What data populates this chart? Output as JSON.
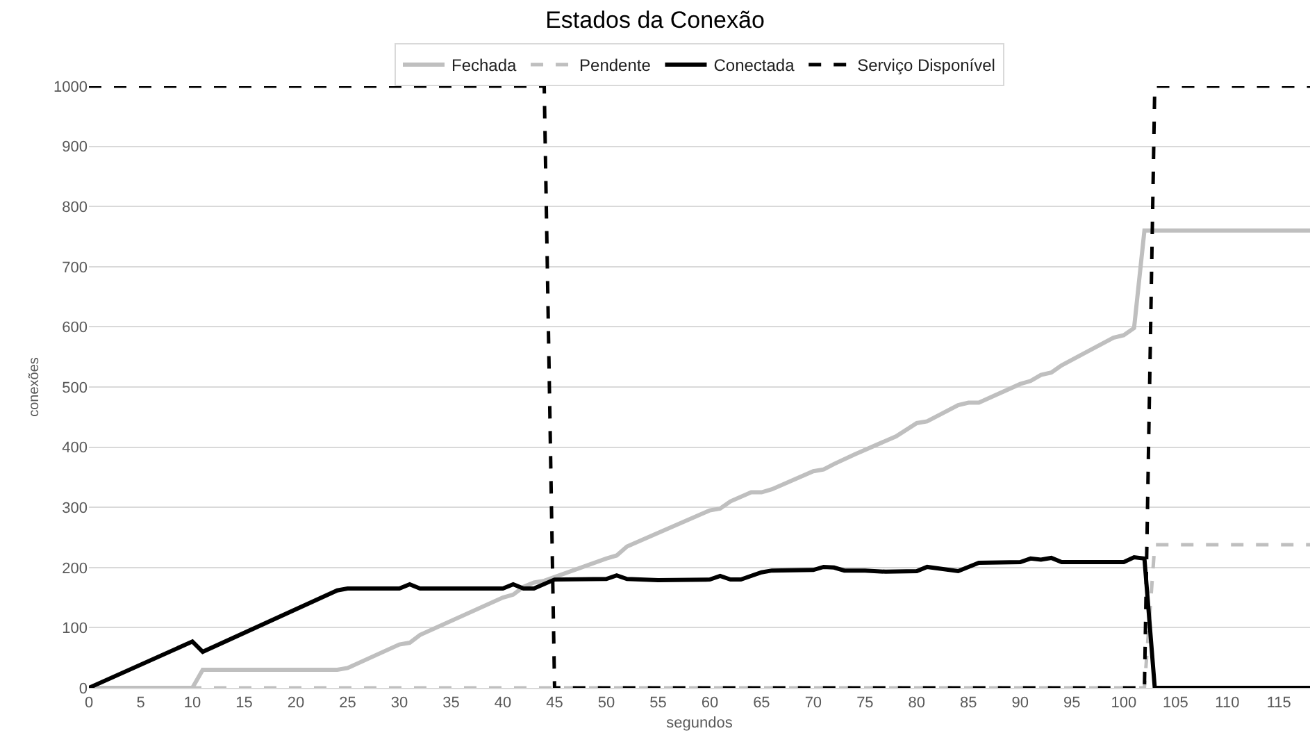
{
  "chart_data": {
    "type": "line",
    "title": "Estados da Conexão",
    "xlabel": "segundos",
    "ylabel": "conexões",
    "xlim": [
      0,
      118
    ],
    "xticks": [
      0,
      5,
      10,
      15,
      20,
      25,
      30,
      35,
      40,
      45,
      50,
      55,
      60,
      65,
      70,
      75,
      80,
      85,
      90,
      95,
      100,
      105,
      110,
      115
    ],
    "ylim": [
      0,
      1000
    ],
    "yticks": [
      0,
      100,
      200,
      300,
      400,
      500,
      600,
      700,
      800,
      900,
      1000
    ],
    "grid": "y",
    "legend": "top",
    "marker": "none",
    "series": [
      {
        "name": "Fechada",
        "color": "#bfbfbf",
        "line_style": "solid",
        "x": [
          0,
          10,
          11,
          24,
          25,
          30,
          31,
          32,
          40,
          41,
          42,
          43,
          44,
          50,
          51,
          52,
          60,
          61,
          62,
          64,
          65,
          66,
          70,
          71,
          72,
          74,
          78,
          80,
          81,
          82,
          84,
          85,
          86,
          90,
          91,
          92,
          93,
          94,
          99,
          100,
          101,
          102,
          118
        ],
        "values": [
          0,
          0,
          30,
          30,
          33,
          72,
          75,
          88,
          150,
          155,
          168,
          175,
          178,
          215,
          220,
          235,
          295,
          298,
          310,
          325,
          325,
          330,
          360,
          363,
          372,
          388,
          418,
          440,
          443,
          452,
          470,
          474,
          474,
          505,
          510,
          520,
          524,
          536,
          582,
          586,
          598,
          760,
          760
        ]
      },
      {
        "name": "Pendente",
        "color": "#bfbfbf",
        "line_style": "dashed",
        "x": [
          0,
          102,
          103,
          118
        ],
        "values": [
          0,
          0,
          238,
          238
        ]
      },
      {
        "name": "Conectada",
        "color": "#000000",
        "line_style": "solid",
        "x": [
          0,
          10,
          11,
          24,
          25,
          30,
          31,
          32,
          40,
          41,
          42,
          43,
          45,
          50,
          51,
          52,
          55,
          60,
          61,
          62,
          63,
          65,
          66,
          70,
          71,
          72,
          73,
          75,
          77,
          80,
          81,
          84,
          86,
          90,
          91,
          92,
          93,
          94,
          99,
          100,
          101,
          102,
          103,
          118
        ],
        "values": [
          0,
          77,
          60,
          162,
          165,
          165,
          172,
          165,
          165,
          172,
          165,
          165,
          180,
          181,
          187,
          181,
          179,
          180,
          186,
          180,
          180,
          192,
          195,
          196,
          201,
          200,
          195,
          195,
          193,
          194,
          201,
          194,
          208,
          209,
          215,
          213,
          216,
          209,
          209,
          209,
          217,
          215,
          0,
          0
        ]
      },
      {
        "name": "Serviço Disponível",
        "color": "#000000",
        "line_style": "dashed",
        "x": [
          0,
          44,
          45,
          102,
          103,
          118
        ],
        "values": [
          1000,
          1000,
          0,
          0,
          1000,
          1000
        ]
      }
    ]
  }
}
